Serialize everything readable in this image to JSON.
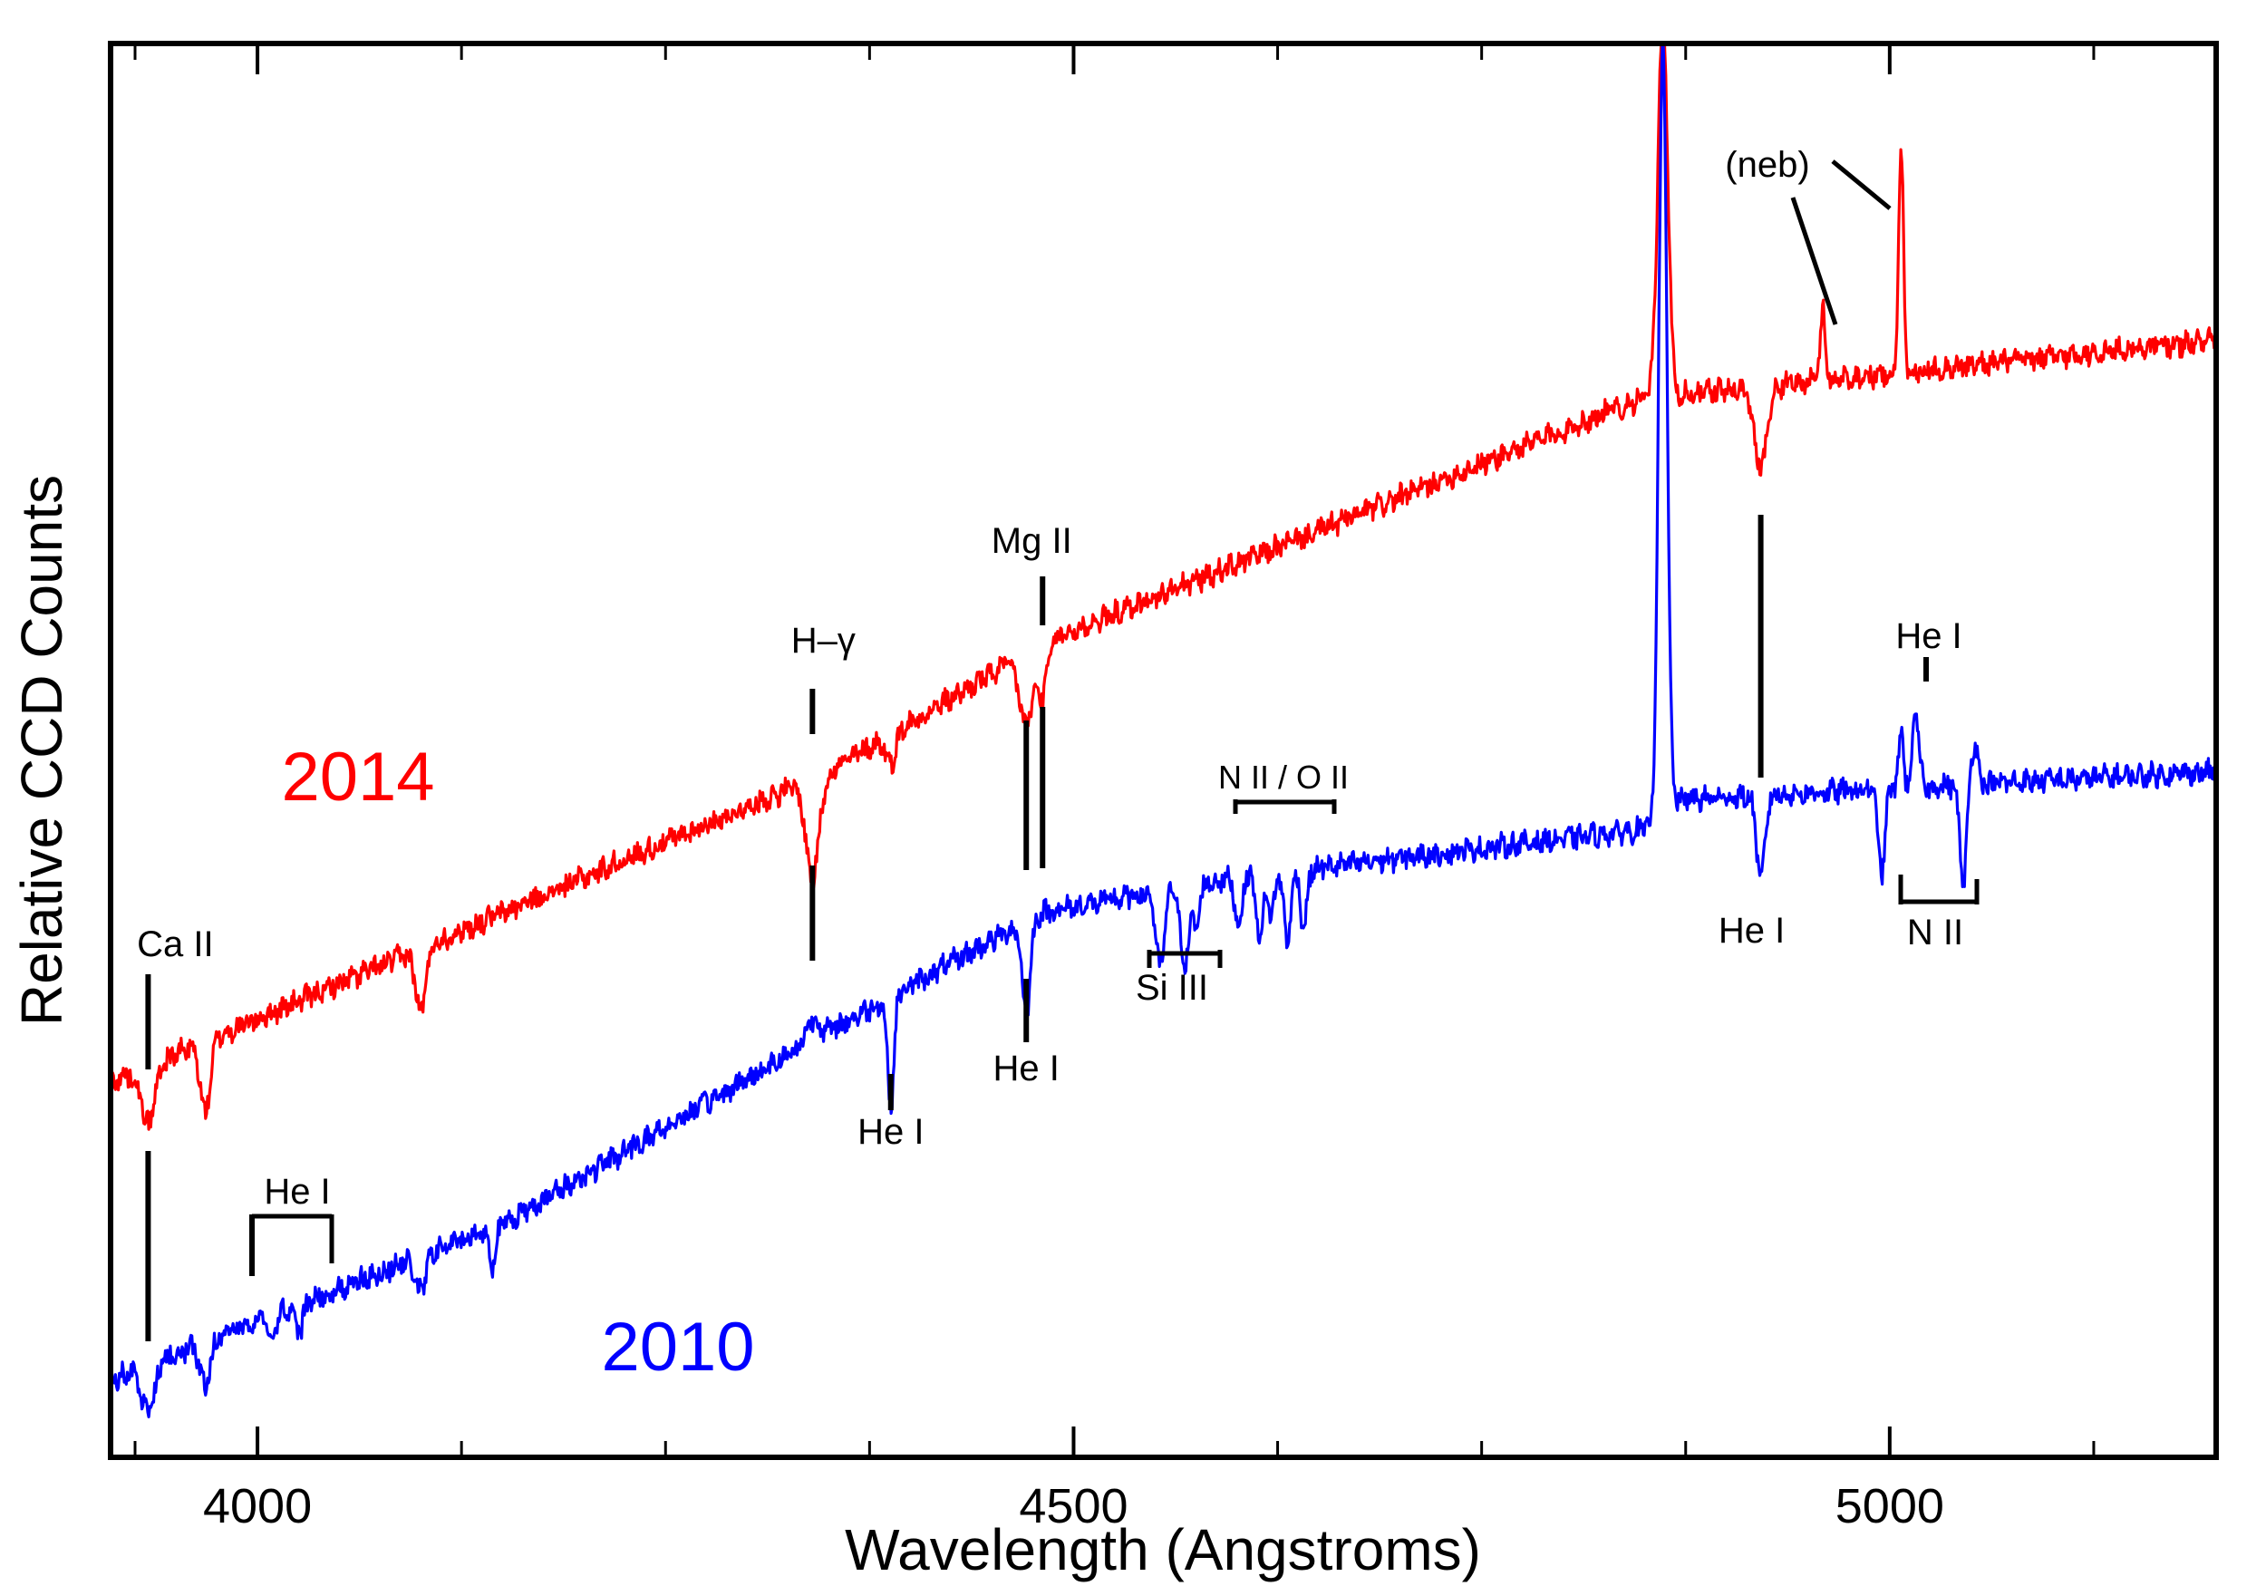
{
  "chart_data": {
    "type": "line",
    "title": "",
    "xlabel": "Wavelength (Angstroms)",
    "ylabel": "Relative CCD Counts",
    "xlim": [
      3910,
      5200
    ],
    "ylim": [
      0,
      1
    ],
    "xticks_major": [
      4000,
      4500,
      5000
    ],
    "xticks_major_labels": [
      "4000",
      "4500",
      "5000"
    ],
    "xticks_minor": [
      3925,
      4125,
      4250,
      4375,
      4625,
      4750,
      4875,
      5125
    ],
    "grid": false,
    "series": [
      {
        "name": "2014",
        "color": "#ff0000",
        "baseline": [
          [
            3910,
            0.265
          ],
          [
            4350,
            0.485
          ],
          [
            4480,
            0.575
          ],
          [
            4850,
            0.75
          ],
          [
            4860,
            0.75
          ],
          [
            5200,
            0.79
          ]
        ],
        "features": [
          {
            "x": 3933,
            "depth": 0.04,
            "width": 4
          },
          {
            "x": 3968,
            "depth": 0.05,
            "width": 3
          },
          {
            "x": 4100,
            "depth": 0.045,
            "width": 3
          },
          {
            "x": 4340,
            "depth": 0.07,
            "width": 4
          },
          {
            "x": 4388,
            "depth": 0.02,
            "width": 3
          },
          {
            "x": 4471,
            "depth": 0.05,
            "width": 4
          },
          {
            "x": 4481,
            "depth": 0.035,
            "width": 3
          },
          {
            "x": 4861,
            "depth": -0.27,
            "width": 3
          },
          {
            "x": 4921,
            "depth": 0.055,
            "width": 4
          },
          {
            "x": 4959,
            "depth": -0.05,
            "width": 1.5
          },
          {
            "x": 5007,
            "depth": -0.155,
            "width": 1.5
          }
        ]
      },
      {
        "name": "2010",
        "color": "#0000ff",
        "baseline": [
          [
            3910,
            0.055
          ],
          [
            4150,
            0.165
          ],
          [
            4340,
            0.295
          ],
          [
            4480,
            0.385
          ],
          [
            4600,
            0.41
          ],
          [
            4855,
            0.445
          ],
          [
            4870,
            0.465
          ],
          [
            5200,
            0.485
          ]
        ],
        "features": [
          {
            "x": 3933,
            "depth": 0.035,
            "width": 4
          },
          {
            "x": 3968,
            "depth": 0.03,
            "width": 3
          },
          {
            "x": 4009,
            "depth": 0.02,
            "width": 2
          },
          {
            "x": 4026,
            "depth": 0.02,
            "width": 2
          },
          {
            "x": 4100,
            "depth": 0.025,
            "width": 3
          },
          {
            "x": 4144,
            "depth": 0.025,
            "width": 2
          },
          {
            "x": 4340,
            "depth": -0.015,
            "width": 4
          },
          {
            "x": 4388,
            "depth": 0.075,
            "width": 2
          },
          {
            "x": 4471,
            "depth": 0.065,
            "width": 2.5
          },
          {
            "x": 4553,
            "depth": 0.055,
            "width": 2.5
          },
          {
            "x": 4568,
            "depth": 0.055,
            "width": 2.5
          },
          {
            "x": 4575,
            "depth": 0.03,
            "width": 2
          },
          {
            "x": 4601,
            "depth": 0.035,
            "width": 2
          },
          {
            "x": 4614,
            "depth": 0.045,
            "width": 2
          },
          {
            "x": 4621,
            "depth": 0.03,
            "width": 2
          },
          {
            "x": 4631,
            "depth": 0.05,
            "width": 2
          },
          {
            "x": 4641,
            "depth": 0.04,
            "width": 2
          },
          {
            "x": 4861,
            "depth": -0.55,
            "width": 2.5
          },
          {
            "x": 4921,
            "depth": 0.06,
            "width": 2.5
          },
          {
            "x": 4995,
            "depth": 0.06,
            "width": 2
          },
          {
            "x": 5007,
            "depth": -0.04,
            "width": 1.5
          },
          {
            "x": 5016,
            "depth": -0.05,
            "width": 2
          },
          {
            "x": 5045,
            "depth": 0.07,
            "width": 2
          },
          {
            "x": 5052,
            "depth": -0.03,
            "width": 2
          }
        ]
      }
    ],
    "annotations": [
      {
        "text": "Ca II",
        "x": 3933
      },
      {
        "text": "He I",
        "x": 4003
      },
      {
        "text": "H–γ",
        "x": 4340
      },
      {
        "text": "He I",
        "x": 4388
      },
      {
        "text": "Mg II",
        "x": 4481
      },
      {
        "text": "He I",
        "x": 4471
      },
      {
        "text": "Si III",
        "x": 4553
      },
      {
        "text": "N II / O II",
        "x": 4640
      },
      {
        "text": "He I",
        "x": 4921
      },
      {
        "text": "He I",
        "x": 5016
      },
      {
        "text": "N II",
        "x": 5020
      },
      {
        "text": "(neb)",
        "x": 4940
      }
    ],
    "series_labels": [
      {
        "text": "2014",
        "color": "#ff0000"
      },
      {
        "text": "2010",
        "color": "#0000ff"
      }
    ]
  }
}
